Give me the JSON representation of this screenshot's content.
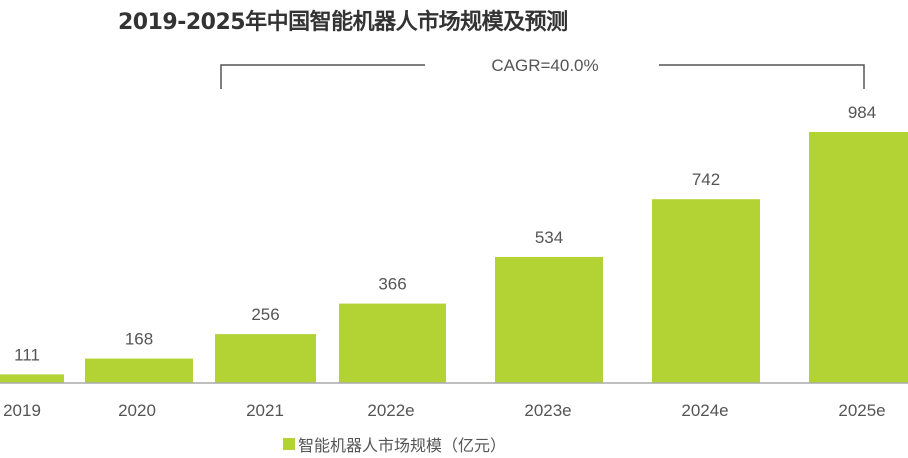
{
  "chart_data": {
    "type": "bar",
    "title": "2019-2025年中国智能机器人市场规模及预测",
    "categories": [
      "2019",
      "2020",
      "2021",
      "2022e",
      "2023e",
      "2024e",
      "2025e"
    ],
    "series": [
      {
        "name": "智能机器人市场规模（亿元）",
        "values": [
          111,
          168,
          256,
          366,
          534,
          742,
          984
        ],
        "color": "#b3d334"
      }
    ],
    "ylim": [
      80,
      1000
    ],
    "grid": false,
    "legend": "bottom",
    "annotation": "CAGR=40.0%",
    "data_labels": true
  },
  "legend": {
    "label": "智能机器人市场规模（亿元）"
  }
}
